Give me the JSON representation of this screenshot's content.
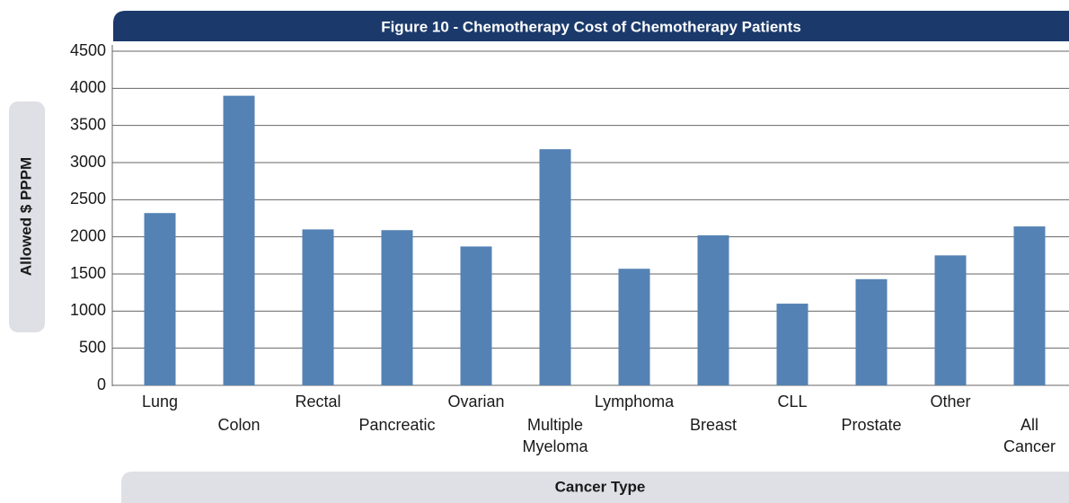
{
  "chart_data": {
    "type": "bar",
    "title": "Figure 10 - Chemotherapy Cost of Chemotherapy Patients",
    "x_label": "Cancer Type",
    "y_label": "Allowed $ PPPM",
    "categories": [
      "Lung",
      "Colon",
      "Rectal",
      "Pancreatic",
      "Ovarian",
      "Multiple Myeloma",
      "Lymphoma",
      "Breast",
      "CLL",
      "Prostate",
      "Other",
      "All Cancer"
    ],
    "values": [
      2320,
      3900,
      2100,
      2090,
      1870,
      3180,
      1570,
      2020,
      1100,
      1430,
      1750,
      2140
    ],
    "color": "#5482b4",
    "ylim": [
      0,
      4500
    ],
    "yticks": [
      0,
      500,
      1000,
      1500,
      2000,
      2500,
      3000,
      3500,
      4000,
      4500
    ],
    "grid": true
  }
}
